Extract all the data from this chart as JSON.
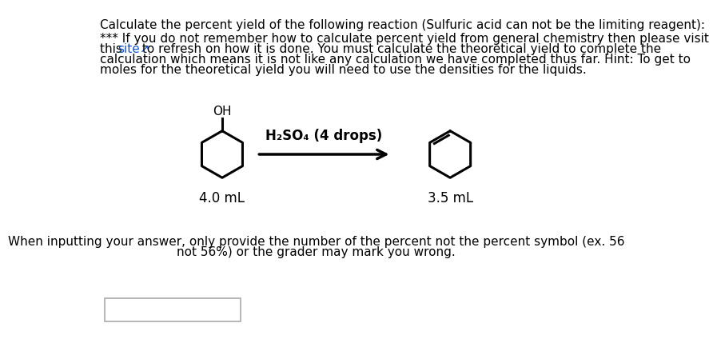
{
  "bg_color": "#ffffff",
  "title_line": "Calculate the percent yield of the following reaction (Sulfuric acid can not be the limiting reagent):",
  "note_line1": "*** If you do not remember how to calculate percent yield from general chemistry then please visit",
  "note_line2_pre": "this ",
  "note_line2_link": "site↗",
  "note_line2_post": " to refresh on how it is done. You must calculate the theoretical yield to complete the",
  "note_line3": "calculation which means it is not like any calculation we have completed thus far. Hint: To get to",
  "note_line4": "moles for the theoretical yield you will need to use the densities for the liquids.",
  "reagent_label": "H₂SO₄ (4 drops)",
  "reactant_label": "4.0 mL",
  "product_label": "3.5 mL",
  "oh_label": "OH",
  "footer_line1": "When inputting your answer, only provide the number of the percent not the percent symbol (ex. 56",
  "footer_line2": "not 56%) or the grader may mark you wrong.",
  "font_size_main": 11,
  "link_color": "#1155cc",
  "text_color": "#000000"
}
